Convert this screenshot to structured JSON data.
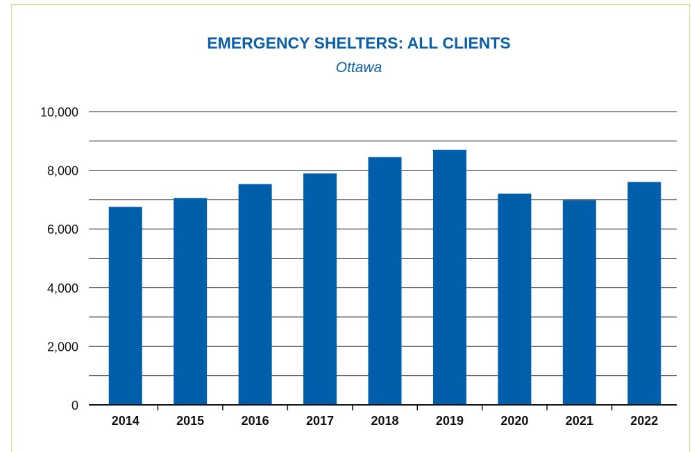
{
  "chart_data": {
    "type": "bar",
    "title": "EMERGENCY SHELTERS: ALL CLIENTS",
    "subtitle": "Ottawa",
    "categories": [
      "2014",
      "2015",
      "2016",
      "2017",
      "2018",
      "2019",
      "2020",
      "2021",
      "2022"
    ],
    "values": [
      6750,
      7050,
      7530,
      7890,
      8450,
      8700,
      7200,
      6980,
      7600
    ],
    "ylim": [
      0,
      10000
    ],
    "yticks": [
      0,
      2000,
      4000,
      6000,
      8000,
      10000
    ],
    "ytick_labels": [
      "0",
      "2,000",
      "4,000",
      "6,000",
      "8,000",
      "10,000"
    ],
    "grid": true,
    "colors": {
      "bar": "#005eaa",
      "title": "#0a5fa8",
      "grid": "#222222",
      "frame": "#e7dc7a"
    }
  }
}
